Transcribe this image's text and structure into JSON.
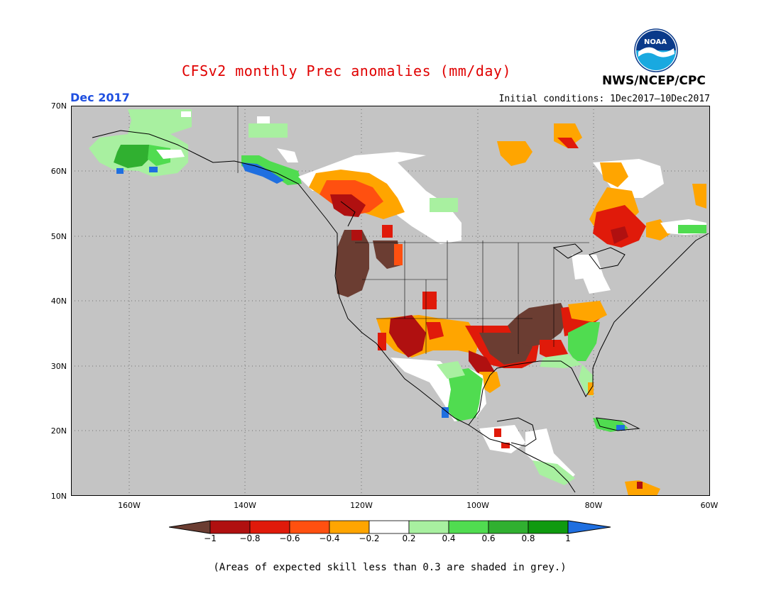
{
  "header": {
    "title": "CFSv2 monthly Prec anomalies (mm/day)",
    "agency": "NWS/NCEP/CPC",
    "logo_text": "NOAA",
    "month": "Dec 2017",
    "initial_conditions": "Initial conditions: 1Dec2017–10Dec2017"
  },
  "map": {
    "region": "North America",
    "lat_labels": [
      "70N",
      "60N",
      "50N",
      "40N",
      "30N",
      "20N",
      "10N"
    ],
    "lon_labels": [
      "160W",
      "140W",
      "120W",
      "100W",
      "80W",
      "60W"
    ],
    "background_color": "#c4c4c4",
    "dry_regions": [
      "Pacific Northwest",
      "Southern Plains / Texas",
      "Southeast / Tennessee Valley",
      "Ohio Valley",
      "Arizona / New Mexico",
      "Quebec / Labrador"
    ],
    "wet_regions": [
      "Alaska",
      "Southeast Alaska",
      "Southeast US coast",
      "Western Mexico",
      "Cuba",
      "Central America"
    ]
  },
  "legend": {
    "labels": [
      "−1",
      "−0.8",
      "−0.6",
      "−0.4",
      "−0.2",
      "0.2",
      "0.4",
      "0.6",
      "0.8",
      "1"
    ],
    "colors": [
      "#6b3d32",
      "#b01010",
      "#e01a0a",
      "#ff5010",
      "#ffa500",
      "#ffffff",
      "#a8f0a0",
      "#50dc50",
      "#30b030",
      "#0f9a0f",
      "#1f6fe0"
    ]
  },
  "footnote": "(Areas of expected skill less than 0.3 are shaded in grey.)"
}
